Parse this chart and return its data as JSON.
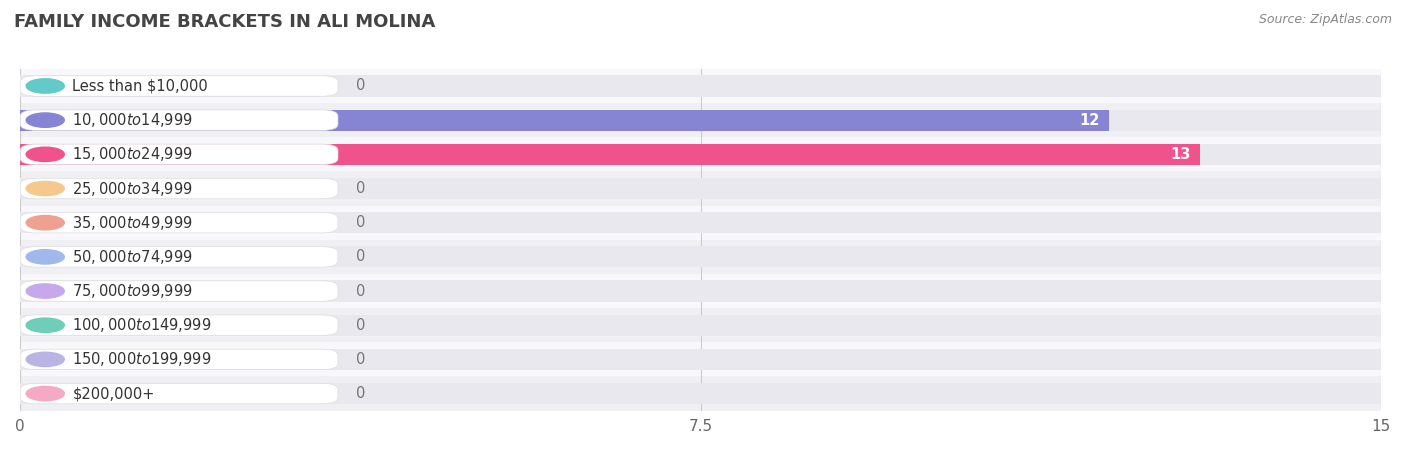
{
  "title": "Family Income Brackets in Ali Molina",
  "title_display": "FAMILY INCOME BRACKETS IN ALI MOLINA",
  "source": "Source: ZipAtlas.com",
  "categories": [
    "Less than $10,000",
    "$10,000 to $14,999",
    "$15,000 to $24,999",
    "$25,000 to $34,999",
    "$35,000 to $49,999",
    "$50,000 to $74,999",
    "$75,000 to $99,999",
    "$100,000 to $149,999",
    "$150,000 to $199,999",
    "$200,000+"
  ],
  "values": [
    0,
    12,
    13,
    0,
    0,
    0,
    0,
    0,
    0,
    0
  ],
  "bar_colors": [
    "#62cac8",
    "#8585d4",
    "#f0538c",
    "#f5c98e",
    "#f0a090",
    "#a0b8ec",
    "#c8a8ec",
    "#6eceb8",
    "#b8b4e4",
    "#f4aac4"
  ],
  "xlim": [
    0,
    15
  ],
  "xticks": [
    0,
    7.5,
    15
  ],
  "background_color": "#ffffff",
  "row_bg_colors": [
    "#f0f0f4",
    "#f8f8fc"
  ],
  "bar_bg_color": "#e8e8ee",
  "title_fontsize": 13,
  "label_fontsize": 10.5,
  "tick_fontsize": 11,
  "bar_height": 0.62,
  "value_label_color_inside": "#ffffff",
  "value_label_color_outside": "#777777"
}
